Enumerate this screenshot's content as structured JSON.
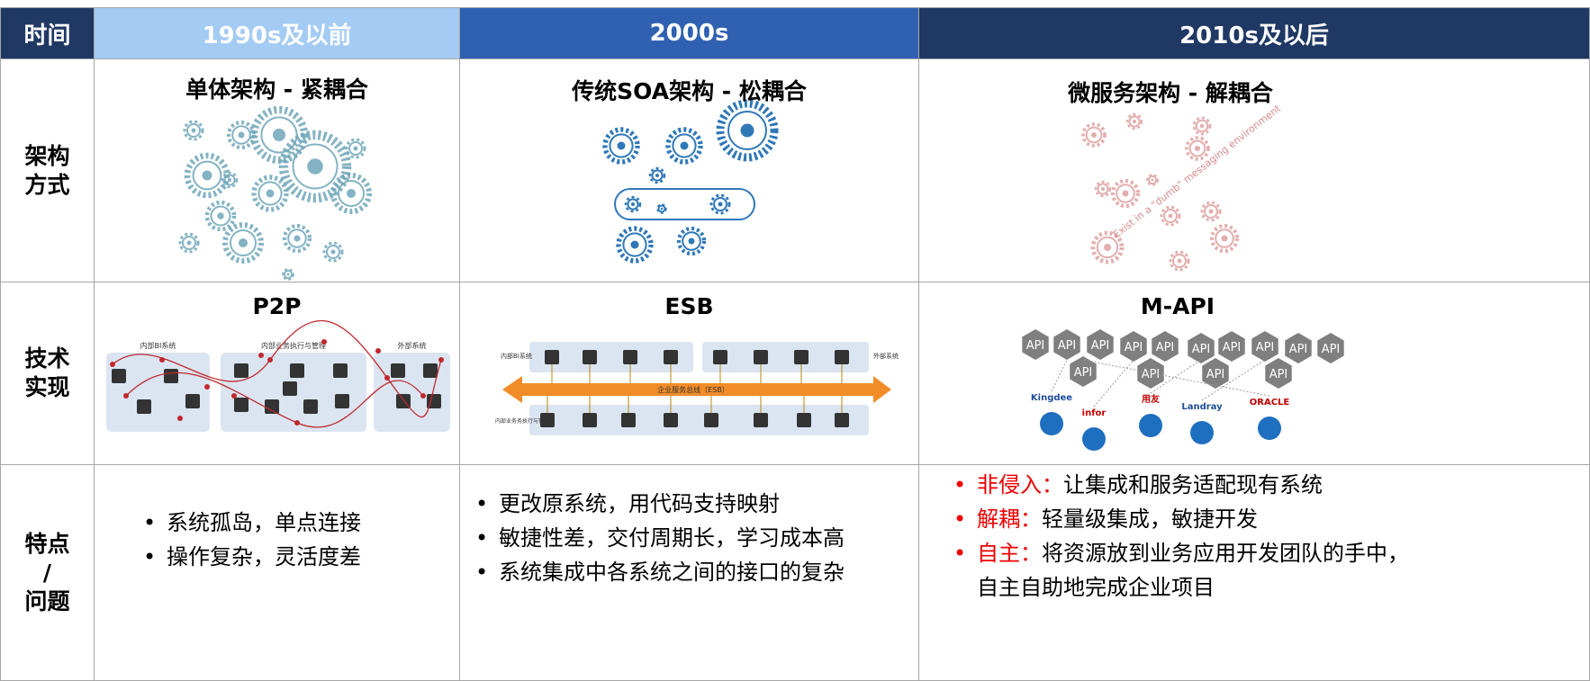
{
  "header": {
    "cells": [
      "时间",
      "1990s及以前",
      "2000s",
      "2010s及以后"
    ]
  },
  "architecture": {
    "label": [
      "架构",
      "方式"
    ],
    "cells": [
      {
        "title": "单体架构 - 紧耦合"
      },
      {
        "title": "传统SOA架构 - 松耦合"
      },
      {
        "title": "微服务架构 - 解耦合",
        "caption": "Exist in a \"dumb\" messaging environment"
      }
    ]
  },
  "implementation": {
    "label": [
      "技术",
      "实现"
    ],
    "cells": [
      {
        "title": "P2P",
        "groups": [
          "内部BI系统",
          "内部业务执行与管理",
          "外部系统"
        ]
      },
      {
        "title": "ESB",
        "bus": "企业服务总线（ESB）",
        "groups": [
          "内部BI系统",
          "外部系统",
          "内部业务务执行与管理"
        ]
      },
      {
        "title": "M-API",
        "api": [
          "API",
          "API",
          "API",
          "API",
          "API",
          "API",
          "API",
          "API",
          "API",
          "API",
          "API",
          "API",
          "API",
          "API"
        ],
        "vendors": [
          "Kingdee",
          "infor",
          "用友",
          "Landray",
          "ORACLE"
        ]
      }
    ]
  },
  "features": {
    "label": [
      "特点",
      "/",
      "问题"
    ],
    "cells": [
      {
        "items": [
          "系统孤岛，单点连接",
          "操作复杂，灵活度差"
        ]
      },
      {
        "items": [
          "更改原系统，用代码支持映射",
          "敏捷性差，交付周期长，学习成本高",
          "系统集成中各系统之间的接口的复杂"
        ]
      },
      {
        "items": [
          {
            "term": "非侵入：",
            "text": "让集成和服务适配现有系统"
          },
          {
            "term": "解耦：",
            "text": "轻量级集成，敏捷开发"
          },
          {
            "term": "自主：",
            "text": "将资源放到业务应用开发团队的手中，自主自助地完成企业项目"
          }
        ]
      }
    ]
  }
}
